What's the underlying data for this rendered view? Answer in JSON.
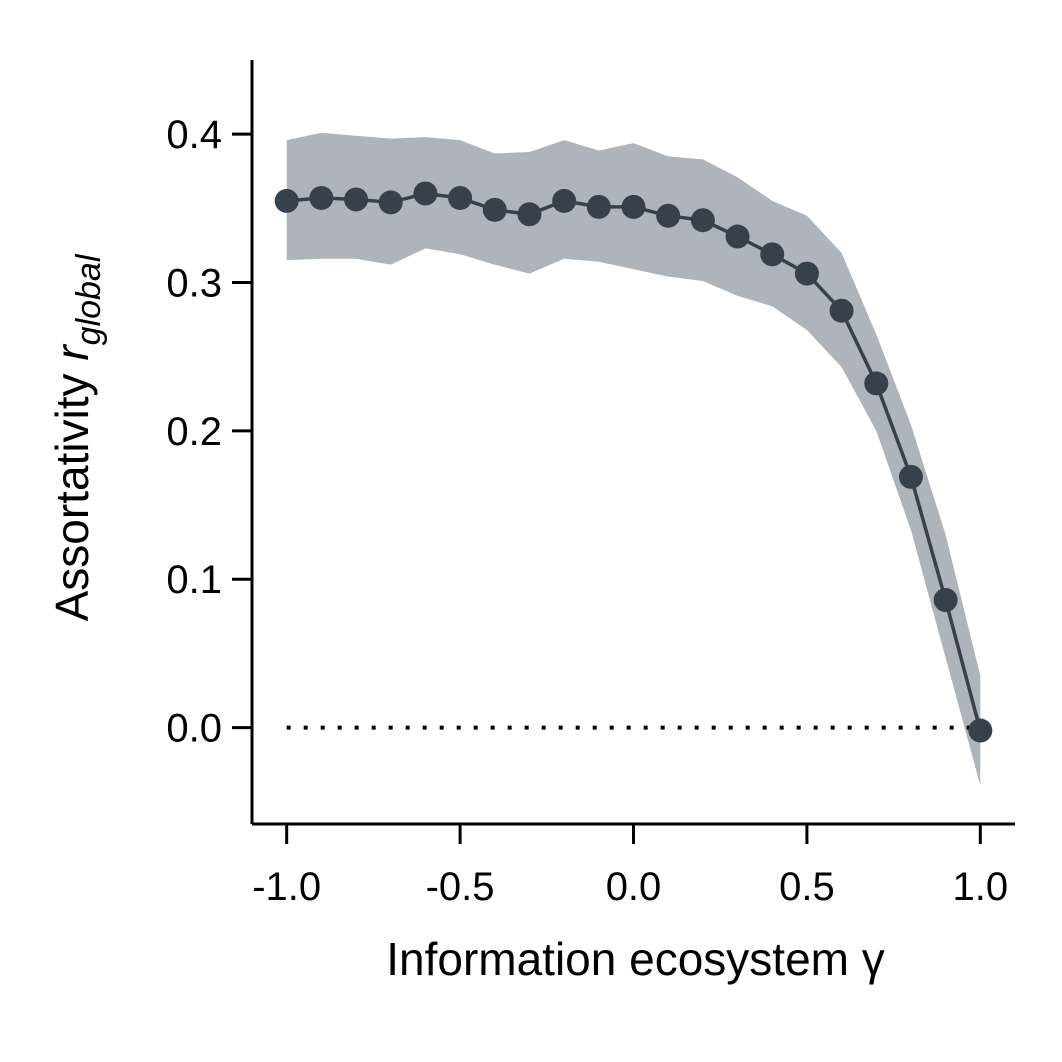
{
  "chart_data": {
    "type": "line",
    "xlabel": "Information ecosystem γ",
    "ylabel": "Assortativity",
    "ylabel_symbol": "r",
    "ylabel_subscript": "global",
    "xlim": [
      -1.1,
      1.1
    ],
    "ylim": [
      -0.065,
      0.45
    ],
    "x_ticks": [
      -1.0,
      -0.5,
      0.0,
      0.5,
      1.0
    ],
    "x_tick_labels": [
      "-1.0",
      "-0.5",
      "0.0",
      "0.5",
      "1.0"
    ],
    "y_ticks": [
      0.0,
      0.1,
      0.2,
      0.3,
      0.4
    ],
    "y_tick_labels": [
      "0.0",
      "0.1",
      "0.2",
      "0.3",
      "0.4"
    ],
    "grid": false,
    "reference_line": {
      "y": 0.0,
      "style": "dotted"
    },
    "series": [
      {
        "x": [
          -1.0,
          -0.9,
          -0.8,
          -0.7,
          -0.6,
          -0.5,
          -0.4,
          -0.3,
          -0.2,
          -0.1,
          0.0,
          0.1,
          0.2,
          0.3,
          0.4,
          0.5,
          0.6,
          0.7,
          0.8,
          0.9,
          1.0
        ],
        "values": [
          0.355,
          0.357,
          0.356,
          0.354,
          0.36,
          0.357,
          0.349,
          0.346,
          0.355,
          0.351,
          0.351,
          0.345,
          0.342,
          0.331,
          0.319,
          0.306,
          0.281,
          0.232,
          0.169,
          0.086,
          -0.002
        ],
        "upper": [
          0.396,
          0.401,
          0.399,
          0.397,
          0.398,
          0.396,
          0.387,
          0.388,
          0.396,
          0.389,
          0.394,
          0.385,
          0.383,
          0.371,
          0.355,
          0.345,
          0.32,
          0.265,
          0.204,
          0.13,
          0.035
        ],
        "lower": [
          0.315,
          0.316,
          0.316,
          0.312,
          0.323,
          0.319,
          0.312,
          0.306,
          0.316,
          0.314,
          0.309,
          0.304,
          0.301,
          0.291,
          0.284,
          0.268,
          0.243,
          0.2,
          0.133,
          0.047,
          -0.039
        ]
      }
    ],
    "colors": {
      "line": "#36414c",
      "band": "#aeb4bb",
      "axis": "#000000"
    }
  }
}
